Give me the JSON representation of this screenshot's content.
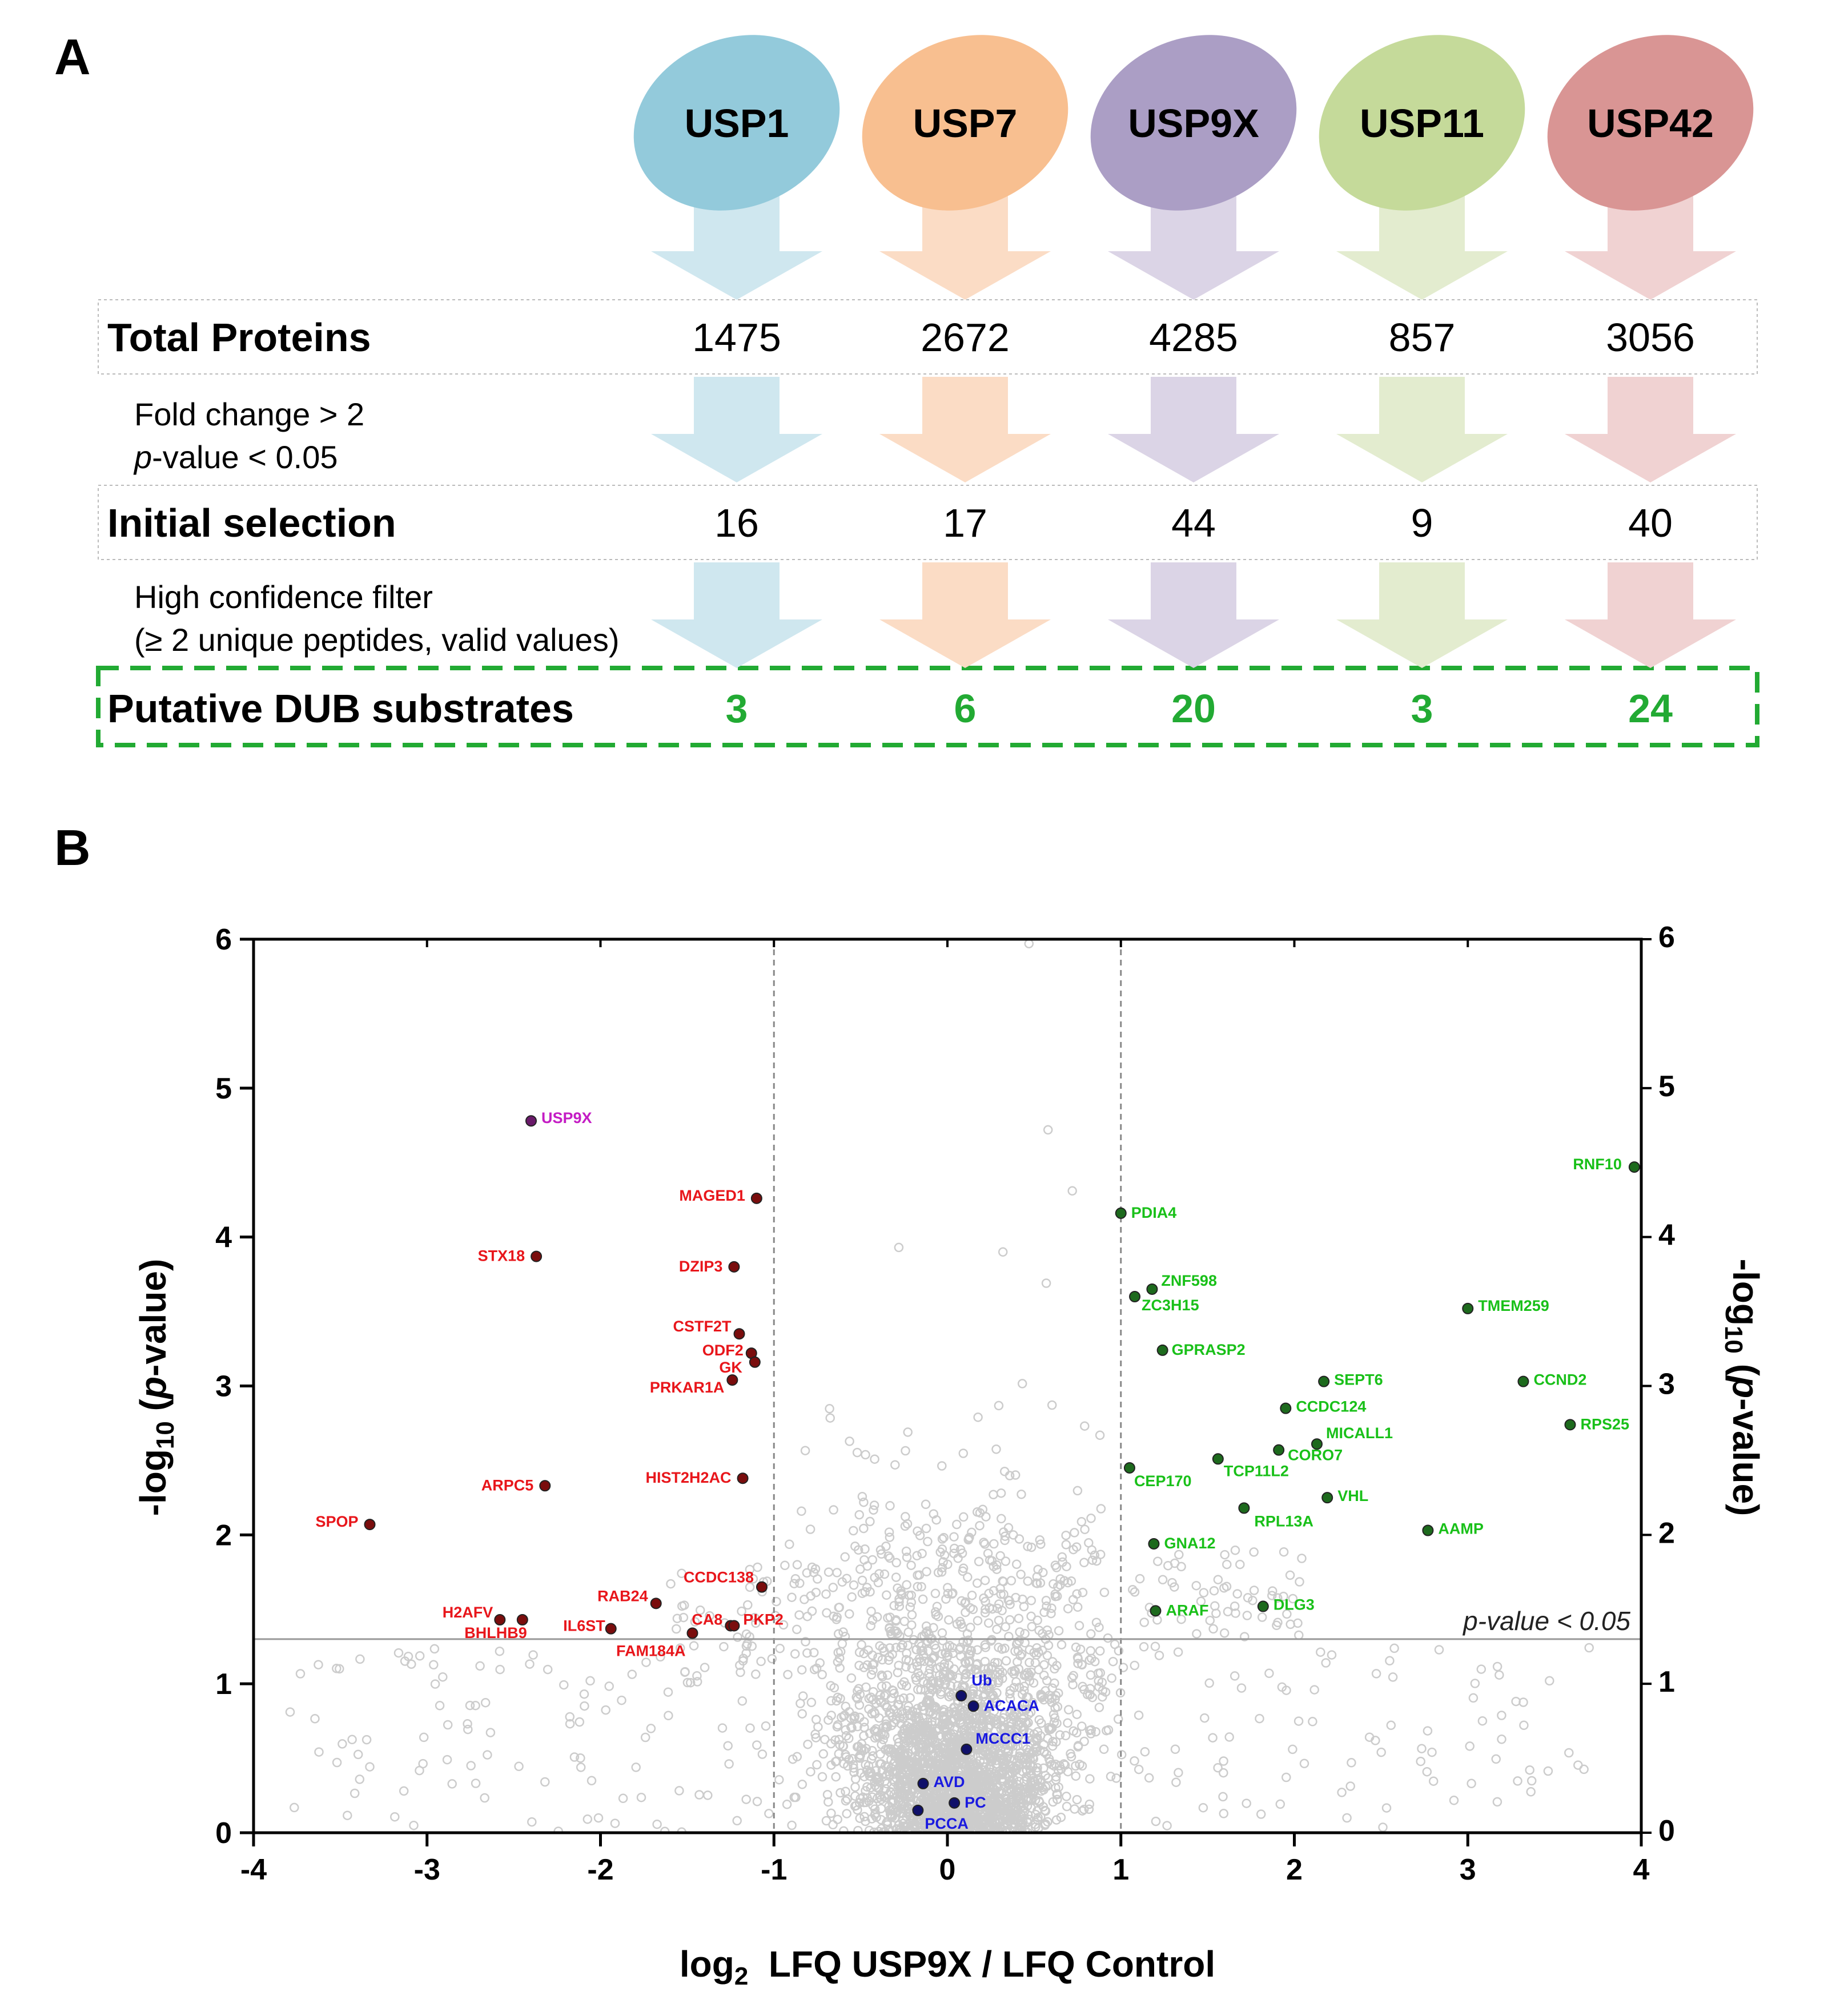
{
  "panel_a": {
    "letter": "A",
    "dubs": [
      {
        "name": "USP1",
        "color": "#93cadb",
        "arrow": "#cfe7ef"
      },
      {
        "name": "USP7",
        "color": "#f8bf90",
        "arrow": "#fbdcc5"
      },
      {
        "name": "USP9X",
        "color": "#ab9ec5",
        "arrow": "#dbd4e6"
      },
      {
        "name": "USP11",
        "color": "#c5da9a",
        "arrow": "#e3eccf"
      },
      {
        "name": "USP42",
        "color": "#d99594",
        "arrow": "#f0d2d2"
      }
    ],
    "rows": [
      {
        "title": "Total Proteins",
        "values": [
          "1475",
          "2672",
          "4285",
          "857",
          "3056"
        ]
      },
      {
        "title": "Initial selection",
        "values": [
          "16",
          "17",
          "44",
          "9",
          "40"
        ]
      },
      {
        "title": "Putative DUB substrates",
        "values": [
          "3",
          "6",
          "20",
          "3",
          "24"
        ]
      }
    ],
    "criteria1": {
      "line1": "Fold change > 2",
      "line2_italic": "p",
      "line2_rest": "-value < 0.05"
    },
    "criteria2": {
      "line1": "High confidence filter",
      "line2": "(≥ 2 unique peptides, valid values)"
    },
    "highlight_color": "#22aa33"
  },
  "panel_b": {
    "letter": "B"
  },
  "chart_data": {
    "type": "scatter",
    "title": "",
    "xlabel_parts": {
      "pre": "log",
      "sub": "2",
      "post": "  LFQ USP9X / LFQ Control"
    },
    "ylabel_parts": {
      "pre": "-log",
      "sub": "10",
      "post": " (",
      "italic": "p",
      "end": "-value)"
    },
    "xlim": [
      -4,
      4
    ],
    "ylim": [
      0,
      6
    ],
    "x_ticks": [
      -4,
      -3,
      -2,
      -1,
      0,
      1,
      2,
      3,
      4
    ],
    "y_ticks": [
      0,
      1,
      2,
      3,
      4,
      5,
      6
    ],
    "fold_change_lines": [
      -1,
      1
    ],
    "pvalue_threshold": 1.3,
    "pvalue_label": "p-value < 0.05",
    "colors": {
      "down": "#e8161b",
      "up": "#19c019",
      "bait": "#c41cc4",
      "bio": "#1a1ae0",
      "bg": "#cccccc",
      "outline_dark": "#555555"
    },
    "labeled_points": [
      {
        "name": "USP9X",
        "x": -2.4,
        "y": 4.78,
        "group": "bait"
      },
      {
        "name": "MAGED1",
        "x": -1.1,
        "y": 4.26,
        "group": "down"
      },
      {
        "name": "STX18",
        "x": -2.37,
        "y": 3.87,
        "group": "down"
      },
      {
        "name": "DZIP3",
        "x": -1.23,
        "y": 3.8,
        "group": "down"
      },
      {
        "name": "CSTF2T",
        "x": -1.2,
        "y": 3.35,
        "group": "down"
      },
      {
        "name": "ODF2",
        "x": -1.13,
        "y": 3.22,
        "group": "down"
      },
      {
        "name": "GK",
        "x": -1.11,
        "y": 3.16,
        "group": "down"
      },
      {
        "name": "PRKAR1A",
        "x": -1.24,
        "y": 3.04,
        "group": "down"
      },
      {
        "name": "ARPC5",
        "x": -2.32,
        "y": 2.33,
        "group": "down"
      },
      {
        "name": "HIST2H2AC",
        "x": -1.18,
        "y": 2.38,
        "group": "down"
      },
      {
        "name": "SPOP",
        "x": -3.33,
        "y": 2.07,
        "group": "down"
      },
      {
        "name": "CCDC138",
        "x": -1.07,
        "y": 1.65,
        "group": "down"
      },
      {
        "name": "RAB24",
        "x": -1.68,
        "y": 1.54,
        "group": "down"
      },
      {
        "name": "H2AFV",
        "x": -2.58,
        "y": 1.43,
        "group": "down"
      },
      {
        "name": "BHLHB9",
        "x": -2.45,
        "y": 1.43,
        "group": "down"
      },
      {
        "name": "IL6ST",
        "x": -1.94,
        "y": 1.37,
        "group": "down"
      },
      {
        "name": "CA8",
        "x": -1.25,
        "y": 1.39,
        "group": "down"
      },
      {
        "name": "PKP2",
        "x": -1.23,
        "y": 1.39,
        "group": "down"
      },
      {
        "name": "FAM184A",
        "x": -1.47,
        "y": 1.34,
        "group": "down"
      },
      {
        "name": "RNF10",
        "x": 3.96,
        "y": 4.47,
        "group": "up"
      },
      {
        "name": "PDIA4",
        "x": 1.0,
        "y": 4.16,
        "group": "up"
      },
      {
        "name": "ZNF598",
        "x": 1.18,
        "y": 3.65,
        "group": "up"
      },
      {
        "name": "ZC3H15",
        "x": 1.08,
        "y": 3.6,
        "group": "up"
      },
      {
        "name": "TMEM259",
        "x": 3.0,
        "y": 3.52,
        "group": "up"
      },
      {
        "name": "GPRASP2",
        "x": 1.24,
        "y": 3.24,
        "group": "up"
      },
      {
        "name": "SEPT6",
        "x": 2.17,
        "y": 3.03,
        "group": "up"
      },
      {
        "name": "CCND2",
        "x": 3.32,
        "y": 3.03,
        "group": "up"
      },
      {
        "name": "CCDC124",
        "x": 1.95,
        "y": 2.85,
        "group": "up"
      },
      {
        "name": "RPS25",
        "x": 3.59,
        "y": 2.74,
        "group": "up"
      },
      {
        "name": "MICALL1",
        "x": 2.13,
        "y": 2.61,
        "group": "up"
      },
      {
        "name": "CORO7",
        "x": 1.91,
        "y": 2.57,
        "group": "up"
      },
      {
        "name": "TCP11L2",
        "x": 1.56,
        "y": 2.51,
        "group": "up"
      },
      {
        "name": "CEP170",
        "x": 1.05,
        "y": 2.45,
        "group": "up"
      },
      {
        "name": "VHL",
        "x": 2.19,
        "y": 2.25,
        "group": "up"
      },
      {
        "name": "RPL13A",
        "x": 1.71,
        "y": 2.18,
        "group": "up"
      },
      {
        "name": "AAMP",
        "x": 2.77,
        "y": 2.03,
        "group": "up"
      },
      {
        "name": "GNA12",
        "x": 1.19,
        "y": 1.94,
        "group": "up"
      },
      {
        "name": "DLG3",
        "x": 1.82,
        "y": 1.52,
        "group": "up"
      },
      {
        "name": "ARAF",
        "x": 1.2,
        "y": 1.49,
        "group": "up"
      },
      {
        "name": "Ub",
        "x": 0.08,
        "y": 0.92,
        "group": "bio"
      },
      {
        "name": "ACACA",
        "x": 0.15,
        "y": 0.85,
        "group": "bio"
      },
      {
        "name": "MCCC1",
        "x": 0.11,
        "y": 0.56,
        "group": "bio"
      },
      {
        "name": "AVD",
        "x": -0.14,
        "y": 0.33,
        "group": "bio"
      },
      {
        "name": "PC",
        "x": 0.04,
        "y": 0.2,
        "group": "bio"
      },
      {
        "name": "PCCA",
        "x": -0.17,
        "y": 0.15,
        "group": "bio"
      }
    ],
    "background_points_note": "~3000 unlabeled proteins, grey open circles, dense near x=0, y<1"
  }
}
